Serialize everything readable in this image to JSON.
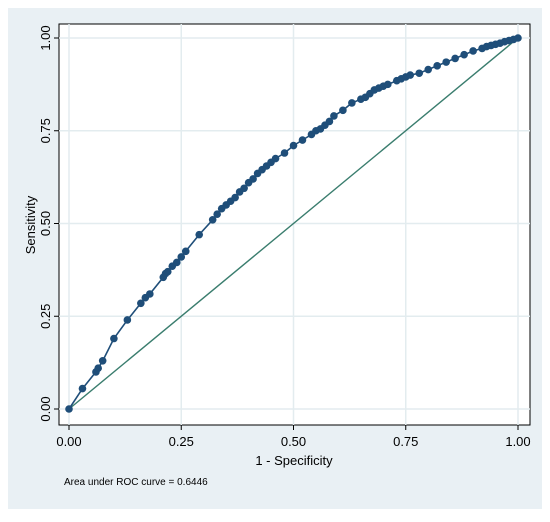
{
  "chart_data": {
    "type": "line",
    "title": "",
    "xlabel": "1 - Specificity",
    "ylabel": "Sensitivity",
    "xlim": [
      0,
      1
    ],
    "ylim": [
      0,
      1
    ],
    "xticks": [
      "0.00",
      "0.25",
      "0.50",
      "0.75",
      "1.00"
    ],
    "yticks": [
      "0.00",
      "0.25",
      "0.50",
      "0.75",
      "1.00"
    ],
    "grid": true,
    "note": "Area under ROC curve = 0.6446",
    "series": [
      {
        "type": "line-with-markers",
        "x": [
          0,
          0.03,
          0.06,
          0.065,
          0.075,
          0.1,
          0.13,
          0.16,
          0.17,
          0.18,
          0.21,
          0.215,
          0.22,
          0.23,
          0.24,
          0.25,
          0.26,
          0.29,
          0.32,
          0.33,
          0.34,
          0.35,
          0.36,
          0.37,
          0.38,
          0.39,
          0.4,
          0.41,
          0.42,
          0.43,
          0.44,
          0.45,
          0.46,
          0.48,
          0.5,
          0.52,
          0.54,
          0.55,
          0.56,
          0.57,
          0.58,
          0.59,
          0.61,
          0.63,
          0.65,
          0.66,
          0.67,
          0.68,
          0.69,
          0.7,
          0.71,
          0.73,
          0.74,
          0.75,
          0.76,
          0.78,
          0.8,
          0.82,
          0.84,
          0.86,
          0.88,
          0.9,
          0.92,
          0.93,
          0.94,
          0.95,
          0.96,
          0.97,
          0.98,
          0.99,
          1.0
        ],
        "y": [
          0,
          0.055,
          0.1,
          0.11,
          0.13,
          0.19,
          0.24,
          0.285,
          0.3,
          0.31,
          0.355,
          0.365,
          0.37,
          0.385,
          0.395,
          0.41,
          0.425,
          0.47,
          0.51,
          0.525,
          0.54,
          0.55,
          0.56,
          0.57,
          0.585,
          0.595,
          0.61,
          0.62,
          0.635,
          0.645,
          0.655,
          0.665,
          0.675,
          0.69,
          0.71,
          0.725,
          0.74,
          0.75,
          0.755,
          0.765,
          0.775,
          0.79,
          0.805,
          0.825,
          0.835,
          0.84,
          0.85,
          0.86,
          0.865,
          0.87,
          0.875,
          0.885,
          0.89,
          0.895,
          0.9,
          0.905,
          0.915,
          0.925,
          0.935,
          0.945,
          0.955,
          0.965,
          0.972,
          0.977,
          0.98,
          0.983,
          0.986,
          0.99,
          0.993,
          0.996,
          1.0
        ],
        "color": "#1f4e79"
      },
      {
        "type": "reference-line",
        "x": [
          0,
          1
        ],
        "y": [
          0,
          1
        ],
        "color": "#3a7d6e"
      }
    ],
    "colors": {
      "outer_background": "#e9f0f4",
      "plot_background": "#ffffff",
      "grid": "#e3ecef",
      "curve": "#1f4e79",
      "reference": "#3a7d6e"
    }
  }
}
